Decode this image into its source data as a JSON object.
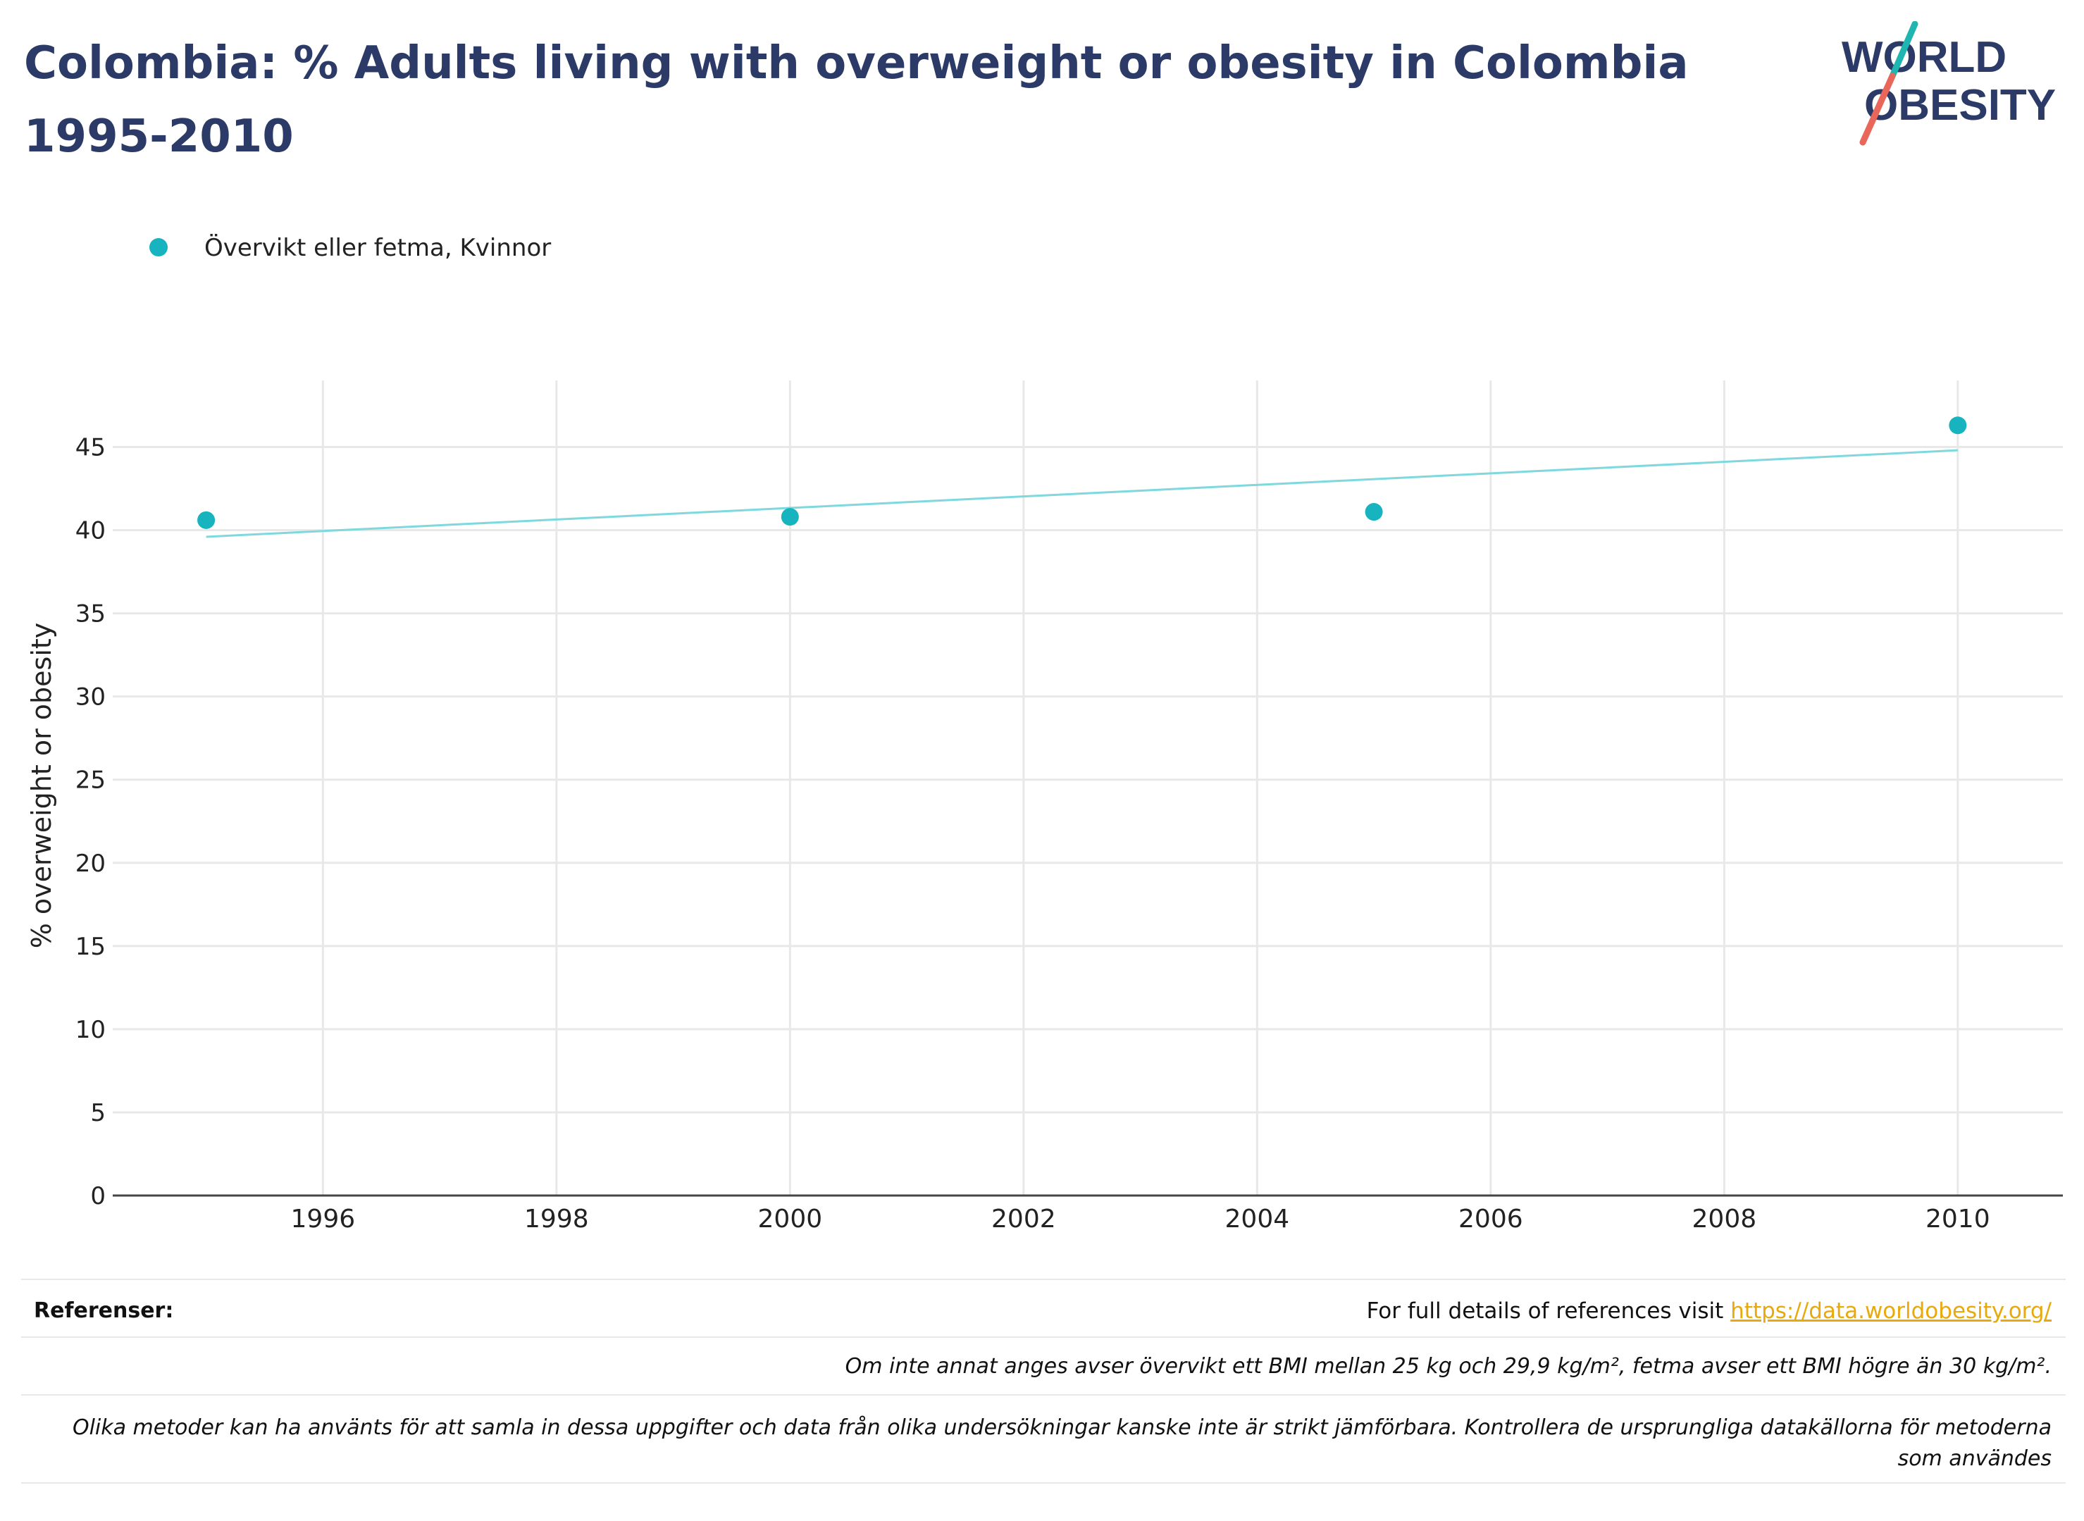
{
  "title": "Colombia: % Adults living with overweight or obesity in Colombia 1995-2010",
  "logo": {
    "line1": "WORLD",
    "line2": "OBESITY"
  },
  "colors": {
    "title": "#2b3a67",
    "series": "#17b3be",
    "trend": "#7ed8dd",
    "grid": "#e8e8e8",
    "axis": "#444444",
    "link": "#e8a90c",
    "logo_teal": "#1fb5b0",
    "logo_red": "#e8665a",
    "logo_text": "#2b3a67"
  },
  "chart_data": {
    "type": "scatter",
    "title": "Colombia: % Adults living with overweight or obesity in Colombia 1995-2010",
    "xlabel": "",
    "ylabel": "% overweight or obesity",
    "xlim": [
      1994.2,
      2010.9
    ],
    "ylim": [
      0,
      49
    ],
    "x_ticks": [
      1996,
      1998,
      2000,
      2002,
      2004,
      2006,
      2008,
      2010
    ],
    "y_ticks": [
      0,
      5,
      10,
      15,
      20,
      25,
      30,
      35,
      40,
      45
    ],
    "grid": true,
    "legend_position": "top-left",
    "series": [
      {
        "name": "Övervikt eller fetma, Kvinnor",
        "x": [
          1995,
          2000,
          2005,
          2010
        ],
        "y": [
          40.6,
          40.8,
          41.1,
          46.3
        ]
      }
    ],
    "trendline": {
      "x": [
        1995,
        2010
      ],
      "y": [
        39.6,
        44.8
      ]
    }
  },
  "footer": {
    "references_label": "Referenser:",
    "references_text": "For full details of references visit ",
    "references_link": "https://data.worldobesity.org/",
    "note_1": "Om inte annat anges avser övervikt ett BMI mellan 25 kg och 29,9 kg/m², fetma avser ett BMI högre än 30 kg/m².",
    "note_2": "Olika metoder kan ha använts för att samla in dessa uppgifter och data från olika undersökningar kanske inte är strikt jämförbara. Kontrollera de ursprungliga datakällorna för metoderna som användes"
  }
}
